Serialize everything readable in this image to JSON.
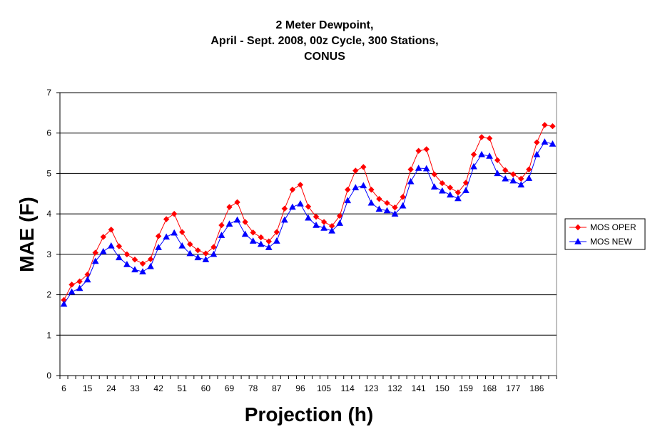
{
  "chart_data": {
    "type": "line",
    "title_lines": [
      "2 Meter Dewpoint,",
      "April - Sept. 2008, 00z Cycle, 300 Stations,",
      "CONUS"
    ],
    "xlabel": "Projection (h)",
    "ylabel": "MAE (F)",
    "ylim": [
      0,
      7
    ],
    "yticks": [
      0,
      1,
      2,
      3,
      4,
      5,
      6,
      7
    ],
    "grid": true,
    "legend_position": "right",
    "x": [
      6,
      9,
      12,
      15,
      18,
      21,
      24,
      27,
      30,
      33,
      36,
      39,
      42,
      45,
      48,
      51,
      54,
      57,
      60,
      63,
      66,
      69,
      72,
      75,
      78,
      81,
      84,
      87,
      90,
      93,
      96,
      99,
      102,
      105,
      108,
      111,
      114,
      117,
      120,
      123,
      126,
      129,
      132,
      135,
      138,
      141,
      144,
      147,
      150,
      153,
      156,
      159,
      162,
      165,
      168,
      171,
      174,
      177,
      180,
      183,
      186,
      189,
      192
    ],
    "xtick_labels": [
      "6",
      "15",
      "24",
      "33",
      "42",
      "51",
      "60",
      "69",
      "78",
      "87",
      "96",
      "105",
      "114",
      "123",
      "132",
      "141",
      "150",
      "159",
      "168",
      "177",
      "186"
    ],
    "series": [
      {
        "name": "MOS OPER",
        "color": "#ff0000",
        "marker": "diamond",
        "values": [
          1.87,
          2.25,
          2.33,
          2.5,
          3.04,
          3.43,
          3.61,
          3.2,
          3.0,
          2.87,
          2.77,
          2.88,
          3.45,
          3.87,
          4.0,
          3.55,
          3.25,
          3.1,
          3.02,
          3.18,
          3.72,
          4.17,
          4.29,
          3.8,
          3.54,
          3.42,
          3.32,
          3.55,
          4.13,
          4.6,
          4.72,
          4.18,
          3.93,
          3.8,
          3.7,
          3.95,
          4.6,
          5.07,
          5.16,
          4.6,
          4.37,
          4.27,
          4.16,
          4.42,
          5.1,
          5.56,
          5.6,
          4.98,
          4.76,
          4.65,
          4.53,
          4.77,
          5.47,
          5.9,
          5.87,
          5.33,
          5.08,
          4.98,
          4.87,
          5.1,
          5.77,
          6.2,
          6.17
        ]
      },
      {
        "name": "MOS NEW",
        "color": "#0000ff",
        "marker": "triangle",
        "values": [
          1.77,
          2.07,
          2.16,
          2.37,
          2.83,
          3.07,
          3.21,
          2.92,
          2.75,
          2.62,
          2.57,
          2.7,
          3.17,
          3.43,
          3.53,
          3.21,
          3.02,
          2.92,
          2.87,
          3.0,
          3.47,
          3.75,
          3.85,
          3.5,
          3.33,
          3.25,
          3.17,
          3.33,
          3.85,
          4.17,
          4.25,
          3.9,
          3.72,
          3.65,
          3.58,
          3.77,
          4.33,
          4.65,
          4.7,
          4.27,
          4.12,
          4.08,
          4.0,
          4.2,
          4.8,
          5.13,
          5.12,
          4.67,
          4.57,
          4.47,
          4.38,
          4.58,
          5.17,
          5.47,
          5.43,
          5.0,
          4.87,
          4.82,
          4.72,
          4.88,
          5.47,
          5.78,
          5.73
        ]
      }
    ]
  }
}
